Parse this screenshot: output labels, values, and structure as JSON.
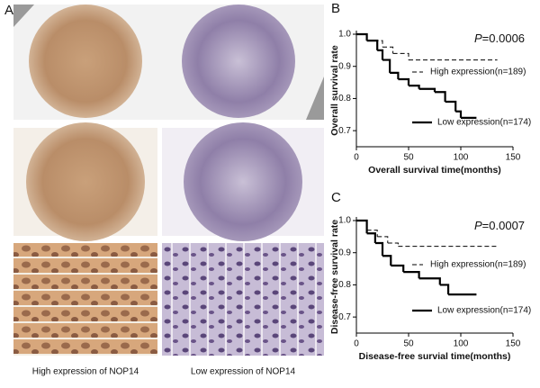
{
  "panel_letters": [
    "A",
    "B",
    "C"
  ],
  "image_captions": [
    "High expression of NOP14",
    "Low expression of NOP14"
  ],
  "chart_data": [
    {
      "type": "line",
      "step": true,
      "annotation": {
        "italic": "P",
        "text": "=0.0006"
      },
      "xlabel": "Overall survival time(months)",
      "ylabel": "Overall survival rate",
      "xlim": [
        0,
        150
      ],
      "ylim": [
        0.65,
        1.0
      ],
      "xticks": [
        0,
        50,
        100,
        150
      ],
      "yticks": [
        0.7,
        0.8,
        0.9,
        {
          "value": 1,
          "label": "1.0"
        }
      ],
      "series": [
        {
          "name": "High expression(n=189)",
          "color": "#000000",
          "style": "dashed",
          "x": [
            0,
            10,
            25,
            35,
            50,
            135
          ],
          "values": [
            1.0,
            0.98,
            0.96,
            0.94,
            0.92,
            0.92
          ]
        },
        {
          "name": "Low expression(n=174)",
          "color": "#000000",
          "style": "solid",
          "x": [
            0,
            10,
            20,
            25,
            32,
            40,
            50,
            60,
            75,
            85,
            95,
            100,
            115
          ],
          "values": [
            1.0,
            0.98,
            0.95,
            0.92,
            0.88,
            0.86,
            0.84,
            0.83,
            0.82,
            0.79,
            0.76,
            0.74,
            0.74
          ]
        }
      ]
    },
    {
      "type": "line",
      "step": true,
      "annotation": {
        "italic": "P",
        "text": "=0.0007"
      },
      "xlabel": "Disease-free survial  time(months)",
      "ylabel": "Disease-free survival rate",
      "xlim": [
        0,
        150
      ],
      "ylim": [
        0.65,
        1.0
      ],
      "xticks": [
        0,
        50,
        100,
        150
      ],
      "yticks": [
        0.7,
        0.8,
        0.9,
        {
          "value": 1,
          "label": "1.0"
        }
      ],
      "series": [
        {
          "name": "High expression(n=189)",
          "color": "#000000",
          "style": "dashed",
          "x": [
            0,
            10,
            20,
            30,
            40,
            135
          ],
          "values": [
            1.0,
            0.97,
            0.95,
            0.93,
            0.92,
            0.92
          ]
        },
        {
          "name": "Low expression(n=174)",
          "color": "#000000",
          "style": "solid",
          "x": [
            0,
            10,
            18,
            25,
            33,
            45,
            60,
            80,
            88,
            115
          ],
          "values": [
            1.0,
            0.96,
            0.93,
            0.89,
            0.86,
            0.84,
            0.82,
            0.8,
            0.77,
            0.77
          ]
        }
      ]
    }
  ]
}
